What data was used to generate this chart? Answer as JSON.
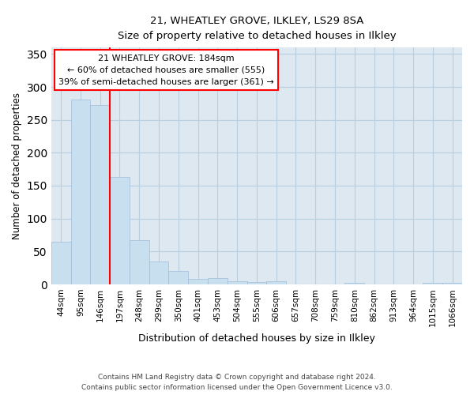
{
  "title": "21, WHEATLEY GROVE, ILKLEY, LS29 8SA",
  "subtitle": "Size of property relative to detached houses in Ilkley",
  "xlabel": "Distribution of detached houses by size in Ilkley",
  "ylabel": "Number of detached properties",
  "footer1": "Contains HM Land Registry data © Crown copyright and database right 2024.",
  "footer2": "Contains public sector information licensed under the Open Government Licence v3.0.",
  "categories": [
    "44sqm",
    "95sqm",
    "146sqm",
    "197sqm",
    "248sqm",
    "299sqm",
    "350sqm",
    "401sqm",
    "453sqm",
    "504sqm",
    "555sqm",
    "606sqm",
    "657sqm",
    "708sqm",
    "759sqm",
    "810sqm",
    "862sqm",
    "913sqm",
    "964sqm",
    "1015sqm",
    "1066sqm"
  ],
  "values": [
    65,
    281,
    272,
    163,
    67,
    35,
    20,
    8,
    10,
    5,
    4,
    5,
    0,
    0,
    0,
    2,
    0,
    0,
    0,
    2,
    2
  ],
  "bar_color": "#c8dff0",
  "bar_edge_color": "#a0bcd8",
  "grid_color": "#b8cfe0",
  "bg_color": "#dde8f0",
  "annotation_line1": "21 WHEATLEY GROVE: 184sqm",
  "annotation_line2": "← 60% of detached houses are smaller (555)",
  "annotation_line3": "39% of semi-detached houses are larger (361) →",
  "redline_x": 2.5,
  "ylim": [
    0,
    360
  ],
  "yticks": [
    0,
    50,
    100,
    150,
    200,
    250,
    300,
    350
  ]
}
